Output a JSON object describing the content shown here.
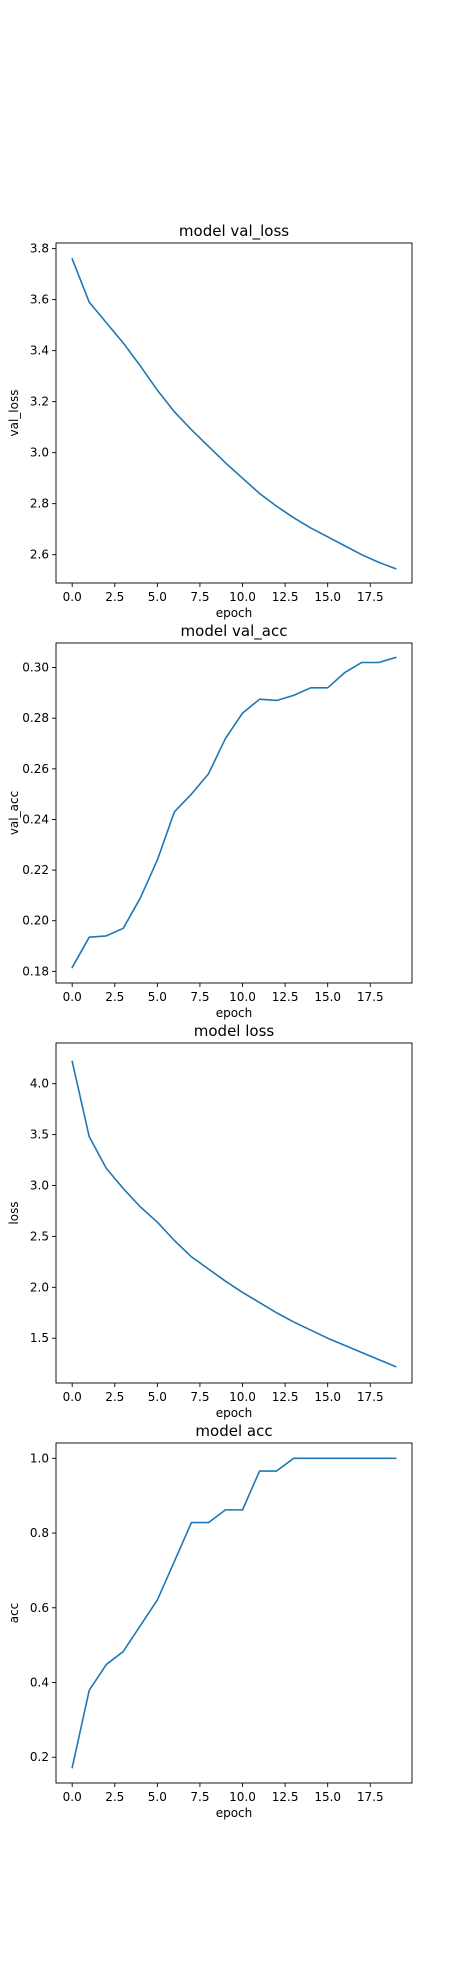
{
  "colors": {
    "line": "#1f77b4",
    "axes": "#000000",
    "background": "#ffffff"
  },
  "chart_data": [
    {
      "type": "line",
      "title": "model val_loss",
      "xlabel": "epoch",
      "ylabel": "val_loss",
      "xlim": [
        -0.95,
        19.95
      ],
      "ylim": [
        2.489,
        3.822
      ],
      "xticks": [
        0.0,
        2.5,
        5.0,
        7.5,
        10.0,
        12.5,
        15.0,
        17.5
      ],
      "xtick_labels": [
        "0.0",
        "2.5",
        "5.0",
        "7.5",
        "10.0",
        "12.5",
        "15.0",
        "17.5"
      ],
      "yticks": [
        2.6,
        2.8,
        3.0,
        3.2,
        3.4,
        3.6,
        3.8
      ],
      "ytick_labels": [
        "2.6",
        "2.8",
        "3.0",
        "3.2",
        "3.4",
        "3.6",
        "3.8"
      ],
      "grid": false,
      "x": [
        0,
        1,
        2,
        3,
        4,
        5,
        6,
        7,
        8,
        9,
        10,
        11,
        12,
        13,
        14,
        15,
        16,
        17,
        18,
        19
      ],
      "series": [
        {
          "values": [
            3.76,
            3.59,
            3.51,
            3.43,
            3.34,
            3.245,
            3.16,
            3.09,
            3.025,
            2.96,
            2.9,
            2.84,
            2.79,
            2.745,
            2.705,
            2.67,
            2.635,
            2.6,
            2.57,
            2.545
          ]
        }
      ]
    },
    {
      "type": "line",
      "title": "model val_acc",
      "xlabel": "epoch",
      "ylabel": "val_acc",
      "xlim": [
        -0.95,
        19.95
      ],
      "ylim": [
        0.1754,
        0.3097
      ],
      "xticks": [
        0.0,
        2.5,
        5.0,
        7.5,
        10.0,
        12.5,
        15.0,
        17.5
      ],
      "xtick_labels": [
        "0.0",
        "2.5",
        "5.0",
        "7.5",
        "10.0",
        "12.5",
        "15.0",
        "17.5"
      ],
      "yticks": [
        0.18,
        0.2,
        0.22,
        0.24,
        0.26,
        0.28,
        0.3
      ],
      "ytick_labels": [
        "0.18",
        "0.20",
        "0.22",
        "0.24",
        "0.26",
        "0.28",
        "0.30"
      ],
      "grid": false,
      "x": [
        0,
        1,
        2,
        3,
        4,
        5,
        6,
        7,
        8,
        9,
        10,
        11,
        12,
        13,
        14,
        15,
        16,
        17,
        18,
        19
      ],
      "series": [
        {
          "values": [
            0.1815,
            0.1935,
            0.194,
            0.197,
            0.209,
            0.224,
            0.243,
            0.25,
            0.258,
            0.272,
            0.282,
            0.2875,
            0.287,
            0.289,
            0.292,
            0.292,
            0.298,
            0.302,
            0.302,
            0.304
          ]
        }
      ]
    },
    {
      "type": "line",
      "title": "model loss",
      "xlabel": "epoch",
      "ylabel": "loss",
      "xlim": [
        -0.95,
        19.95
      ],
      "ylim": [
        1.06,
        4.4
      ],
      "xticks": [
        0.0,
        2.5,
        5.0,
        7.5,
        10.0,
        12.5,
        15.0,
        17.5
      ],
      "xtick_labels": [
        "0.0",
        "2.5",
        "5.0",
        "7.5",
        "10.0",
        "12.5",
        "15.0",
        "17.5"
      ],
      "yticks": [
        1.5,
        2.0,
        2.5,
        3.0,
        3.5,
        4.0
      ],
      "ytick_labels": [
        "1.5",
        "2.0",
        "2.5",
        "3.0",
        "3.5",
        "4.0"
      ],
      "grid": false,
      "x": [
        0,
        1,
        2,
        3,
        4,
        5,
        6,
        7,
        8,
        9,
        10,
        11,
        12,
        13,
        14,
        15,
        16,
        17,
        18,
        19
      ],
      "series": [
        {
          "values": [
            4.22,
            3.48,
            3.17,
            2.97,
            2.79,
            2.64,
            2.46,
            2.3,
            2.18,
            2.06,
            1.95,
            1.85,
            1.75,
            1.66,
            1.58,
            1.5,
            1.43,
            1.36,
            1.29,
            1.22
          ]
        }
      ]
    },
    {
      "type": "line",
      "title": "model acc",
      "xlabel": "epoch",
      "ylabel": "acc",
      "xlim": [
        -0.95,
        19.95
      ],
      "ylim": [
        0.131,
        1.041
      ],
      "xticks": [
        0.0,
        2.5,
        5.0,
        7.5,
        10.0,
        12.5,
        15.0,
        17.5
      ],
      "xtick_labels": [
        "0.0",
        "2.5",
        "5.0",
        "7.5",
        "10.0",
        "12.5",
        "15.0",
        "17.5"
      ],
      "yticks": [
        0.2,
        0.4,
        0.6,
        0.8,
        1.0
      ],
      "ytick_labels": [
        "0.2",
        "0.4",
        "0.6",
        "0.8",
        "1.0"
      ],
      "grid": false,
      "x": [
        0,
        1,
        2,
        3,
        4,
        5,
        6,
        7,
        8,
        9,
        10,
        11,
        12,
        13,
        14,
        15,
        16,
        17,
        18,
        19
      ],
      "series": [
        {
          "values": [
            0.172,
            0.379,
            0.448,
            0.483,
            0.552,
            0.621,
            0.724,
            0.828,
            0.828,
            0.862,
            0.862,
            0.966,
            0.966,
            1.0,
            1.0,
            1.0,
            1.0,
            1.0,
            1.0,
            1.0
          ]
        }
      ]
    }
  ]
}
